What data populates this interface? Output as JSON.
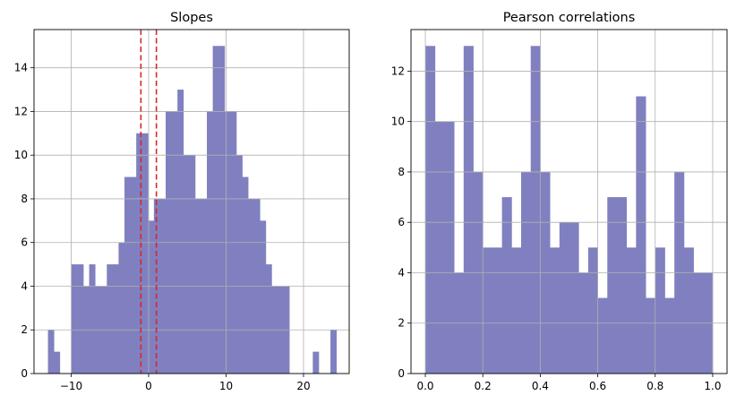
{
  "chart_data": [
    {
      "type": "histogram",
      "title": "Slopes",
      "xlabel": "",
      "ylabel": "",
      "xlim": [
        -14.8,
        25.9
      ],
      "ylim": [
        0,
        15.75
      ],
      "xticks": [
        -10,
        0,
        10,
        20
      ],
      "yticks": [
        0,
        2,
        4,
        6,
        8,
        10,
        12,
        14
      ],
      "xtick_labels": [
        "−10",
        "0",
        "10",
        "20"
      ],
      "ytick_labels": [
        "0",
        "2",
        "4",
        "6",
        "8",
        "10",
        "12",
        "14"
      ],
      "grid": true,
      "bar_color": "#8080c0",
      "bin_edges": [
        -13.0,
        -12.24,
        -11.48,
        -10.72,
        -9.96,
        -9.2,
        -8.44,
        -7.68,
        -6.92,
        -6.16,
        -5.4,
        -4.64,
        -3.88,
        -3.12,
        -2.36,
        -1.6,
        -0.84,
        -0.08,
        0.68,
        1.44,
        2.2,
        2.96,
        3.72,
        4.48,
        5.24,
        6.0,
        6.76,
        7.52,
        8.28,
        9.04,
        9.8,
        10.56,
        11.32,
        12.08,
        12.84,
        13.6,
        14.36,
        15.12,
        15.88,
        16.64,
        17.4,
        18.16,
        18.92,
        19.68,
        20.44,
        21.2,
        21.96,
        22.72,
        23.48,
        24.24
      ],
      "counts": [
        2,
        1,
        0,
        0,
        5,
        5,
        4,
        5,
        4,
        4,
        5,
        5,
        6,
        9,
        9,
        11,
        11,
        7,
        8,
        8,
        12,
        12,
        13,
        10,
        10,
        8,
        8,
        12,
        15,
        15,
        12,
        12,
        10,
        9,
        8,
        8,
        7,
        5,
        4,
        4,
        4,
        0,
        0,
        0,
        0,
        1,
        0,
        0,
        2
      ],
      "vlines": [
        -1.0,
        1.0
      ],
      "vline_color": "#d62728"
    },
    {
      "type": "histogram",
      "title": "Pearson correlations",
      "xlabel": "",
      "ylabel": "",
      "xlim": [
        -0.05,
        1.05
      ],
      "ylim": [
        0,
        13.65
      ],
      "xticks": [
        0.0,
        0.2,
        0.4,
        0.6,
        0.8,
        1.0
      ],
      "yticks": [
        0,
        2,
        4,
        6,
        8,
        10,
        12
      ],
      "xtick_labels": [
        "0.0",
        "0.2",
        "0.4",
        "0.6",
        "0.8",
        "1.0"
      ],
      "ytick_labels": [
        "0",
        "2",
        "4",
        "6",
        "8",
        "10",
        "12"
      ],
      "grid": true,
      "bar_color": "#8080c0",
      "bin_edges": [
        0.0,
        0.0333,
        0.0667,
        0.1,
        0.1333,
        0.1667,
        0.2,
        0.2333,
        0.2667,
        0.3,
        0.3333,
        0.3667,
        0.4,
        0.4333,
        0.4667,
        0.5,
        0.5333,
        0.5667,
        0.6,
        0.6333,
        0.6667,
        0.7,
        0.7333,
        0.7667,
        0.8,
        0.8333,
        0.8667,
        0.9,
        0.9333,
        0.9667,
        1.0
      ],
      "counts": [
        13,
        10,
        10,
        4,
        13,
        8,
        5,
        5,
        7,
        5,
        8,
        13,
        8,
        5,
        6,
        6,
        4,
        5,
        3,
        7,
        7,
        5,
        11,
        3,
        5,
        3,
        8,
        5,
        4,
        4
      ]
    }
  ]
}
